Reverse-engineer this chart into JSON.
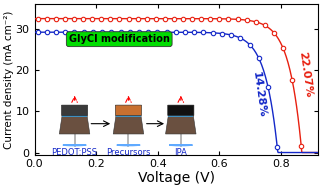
{
  "xlabel": "Voltage (V)",
  "ylabel": "Current density (mA cm⁻²)",
  "xlim": [
    0.0,
    0.92
  ],
  "ylim": [
    -0.5,
    36
  ],
  "xticks": [
    0.0,
    0.2,
    0.4,
    0.6,
    0.8
  ],
  "yticks": [
    0,
    10,
    20,
    30
  ],
  "red_label": "22.07%",
  "blue_label": "14.28%",
  "red_color": "#e82010",
  "blue_color": "#1428c8",
  "red_jsc": 32.5,
  "red_voc": 0.868,
  "blue_jsc": 29.2,
  "blue_voc": 0.79,
  "n_red": 1.55,
  "n_blue": 1.55,
  "inset_label": "GlyCl modification",
  "inset_label_bg": "#00dd00",
  "marker_size": 3.2,
  "fig_bg": "#ffffff",
  "axis_bg": "#ffffff",
  "font_size_xlabel": 10,
  "font_size_ylabel": 7.5,
  "font_size_ticks": 8,
  "font_size_pct": 8,
  "font_size_inset": 7,
  "font_size_device_label": 6
}
